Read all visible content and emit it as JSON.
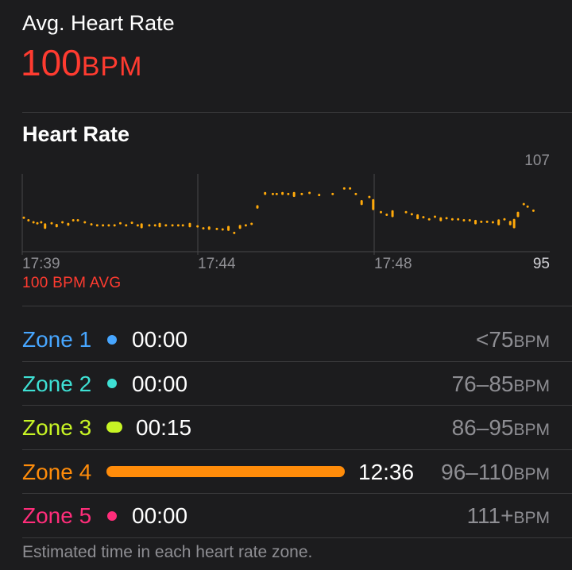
{
  "summary": {
    "title": "Avg. Heart Rate",
    "value": "100",
    "unit": "BPM"
  },
  "chart_section": {
    "title": "Heart Rate",
    "avg_label": "100 BPM AVG"
  },
  "chart_data": {
    "type": "line",
    "title": "Heart Rate",
    "y_max_label": "107",
    "y_min_label": "95",
    "ylim": [
      93,
      109
    ],
    "x_tick_labels": [
      "17:39",
      "17:44",
      "17:48"
    ],
    "color": "#ffa90a",
    "marks": [
      [
        0.0,
        99.7,
        99.7
      ],
      [
        0.12,
        99.2,
        99.2
      ],
      [
        0.25,
        98.8,
        98.8
      ],
      [
        0.35,
        98.6,
        98.6
      ],
      [
        0.45,
        98.8,
        98.8
      ],
      [
        0.55,
        97.5,
        98.6
      ],
      [
        0.72,
        98.6,
        98.6
      ],
      [
        0.85,
        97.8,
        98.5
      ],
      [
        1.0,
        98.8,
        98.8
      ],
      [
        1.15,
        98.1,
        98.7
      ],
      [
        1.28,
        99.2,
        99.2
      ],
      [
        1.4,
        99.2,
        99.2
      ],
      [
        1.58,
        98.8,
        98.8
      ],
      [
        1.75,
        98.4,
        98.4
      ],
      [
        1.9,
        98.2,
        98.2
      ],
      [
        2.05,
        98.2,
        98.2
      ],
      [
        2.2,
        98.2,
        98.2
      ],
      [
        2.35,
        98.2,
        98.2
      ],
      [
        2.5,
        98.6,
        98.6
      ],
      [
        2.65,
        98.2,
        98.2
      ],
      [
        2.8,
        98.7,
        98.7
      ],
      [
        2.95,
        98.2,
        98.2
      ],
      [
        3.05,
        97.6,
        98.6
      ],
      [
        3.25,
        98.2,
        98.2
      ],
      [
        3.4,
        98.2,
        98.2
      ],
      [
        3.52,
        97.8,
        98.7
      ],
      [
        3.68,
        98.2,
        98.2
      ],
      [
        3.85,
        98.2,
        98.2
      ],
      [
        4.0,
        98.2,
        98.2
      ],
      [
        4.12,
        98.2,
        98.2
      ],
      [
        4.3,
        97.8,
        98.7
      ],
      [
        4.5,
        98.0,
        98.0
      ],
      [
        4.65,
        97.6,
        97.6
      ],
      [
        4.8,
        97.3,
        98.0
      ],
      [
        5.0,
        97.5,
        97.5
      ],
      [
        5.15,
        97.4,
        97.4
      ],
      [
        5.3,
        97.1,
        98.1
      ],
      [
        5.45,
        96.7,
        96.7
      ],
      [
        5.6,
        97.5,
        98.3
      ],
      [
        5.75,
        98.2,
        98.2
      ],
      [
        5.9,
        98.5,
        98.5
      ],
      [
        6.05,
        101.5,
        102.2
      ],
      [
        6.25,
        104.2,
        104.8
      ],
      [
        6.45,
        104.4,
        104.4
      ],
      [
        6.55,
        104.4,
        104.4
      ],
      [
        6.7,
        104.2,
        104.8
      ],
      [
        6.85,
        104.4,
        104.4
      ],
      [
        7.0,
        103.8,
        104.8
      ],
      [
        7.2,
        104.4,
        104.4
      ],
      [
        7.4,
        104.6,
        104.6
      ],
      [
        7.65,
        104.2,
        104.2
      ],
      [
        8.0,
        104.4,
        104.4
      ],
      [
        8.3,
        105.5,
        105.5
      ],
      [
        8.45,
        105.5,
        105.5
      ],
      [
        8.6,
        104.4,
        104.4
      ],
      [
        8.75,
        102.2,
        103.2
      ],
      [
        8.95,
        103.8,
        103.8
      ],
      [
        9.05,
        101.2,
        103.4
      ],
      [
        9.25,
        100.8,
        100.8
      ],
      [
        9.4,
        100.3,
        100.3
      ],
      [
        9.55,
        99.8,
        101.2
      ],
      [
        9.9,
        100.8,
        100.8
      ],
      [
        10.05,
        100.4,
        100.4
      ],
      [
        10.2,
        99.4,
        100.4
      ],
      [
        10.35,
        99.8,
        99.8
      ],
      [
        10.5,
        99.4,
        99.4
      ],
      [
        10.65,
        99.9,
        99.9
      ],
      [
        10.8,
        99.0,
        99.8
      ],
      [
        10.95,
        99.6,
        99.6
      ],
      [
        11.1,
        99.4,
        99.4
      ],
      [
        11.25,
        99.4,
        99.4
      ],
      [
        11.4,
        99.2,
        99.2
      ],
      [
        11.55,
        99.2,
        99.2
      ],
      [
        11.7,
        98.4,
        99.3
      ],
      [
        11.85,
        98.9,
        98.9
      ],
      [
        12.0,
        98.9,
        98.9
      ],
      [
        12.15,
        98.8,
        98.8
      ],
      [
        12.3,
        98.2,
        99.4
      ],
      [
        12.45,
        99.4,
        99.4
      ],
      [
        12.6,
        98.2,
        99.1
      ],
      [
        12.7,
        97.6,
        99.5
      ],
      [
        12.8,
        99.8,
        100.9
      ],
      [
        12.95,
        102.4,
        102.4
      ],
      [
        13.05,
        101.9,
        101.9
      ],
      [
        13.2,
        101.1,
        101.1
      ]
    ]
  },
  "zones": [
    {
      "name": "Zone 1",
      "time": "00:00",
      "range": "<75",
      "unit": "BPM",
      "color": "#47a6ff",
      "fraction": 0.0
    },
    {
      "name": "Zone 2",
      "time": "00:00",
      "range": "76–85",
      "unit": "BPM",
      "color": "#3ee0d4",
      "fraction": 0.0
    },
    {
      "name": "Zone 3",
      "time": "00:15",
      "range": "86–95",
      "unit": "BPM",
      "color": "#c7f425",
      "fraction": 0.02
    },
    {
      "name": "Zone 4",
      "time": "12:36",
      "range": "96–110",
      "unit": "BPM",
      "color": "#ff8c0a",
      "fraction": 1.0
    },
    {
      "name": "Zone 5",
      "time": "00:00",
      "range": "111+",
      "unit": "BPM",
      "color": "#ff2d7a",
      "fraction": 0.0
    }
  ],
  "footnote": "Estimated time in each heart rate zone."
}
